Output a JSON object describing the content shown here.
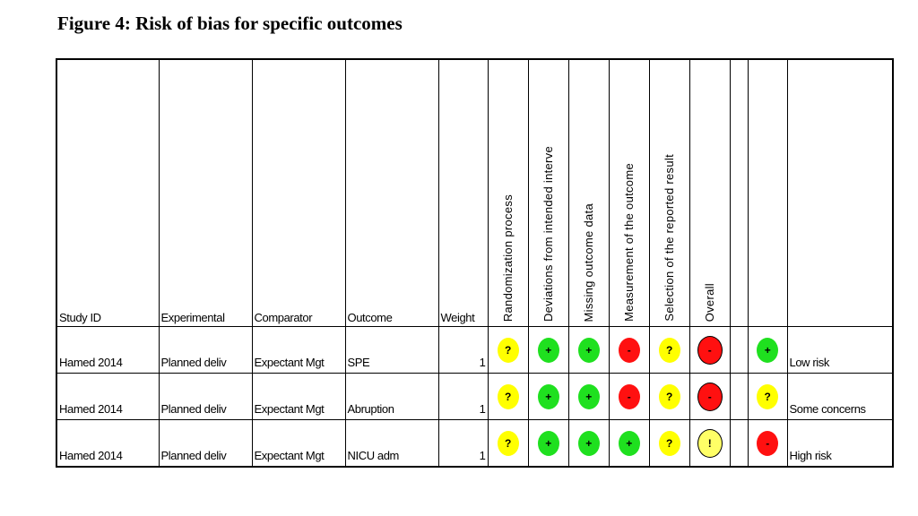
{
  "title": "Figure 4: Risk of bias for specific outcomes",
  "table": {
    "headers": [
      "Study ID",
      "Experimental",
      "Comparator",
      "Outcome",
      "Weight"
    ],
    "domains": [
      "Randomization process",
      "Deviations from intended interve",
      "Missing outcome data",
      "Measurement of the outcome",
      "Selection of the reported result",
      "Overall"
    ],
    "rows": [
      {
        "cells": [
          "Hamed 2014",
          "Planned deliv",
          "Expectant Mgt",
          "SPE",
          1
        ],
        "judgments": [
          "?",
          "+",
          "+",
          "-",
          "?",
          "-"
        ]
      },
      {
        "cells": [
          "Hamed 2014",
          "Planned deliv",
          "Expectant Mgt",
          "Abruption",
          1
        ],
        "judgments": [
          "?",
          "+",
          "+",
          "-",
          "?",
          "-"
        ]
      },
      {
        "cells": [
          "Hamed 2014",
          "Planned deliv",
          "Expectant Mgt",
          "NICU adm",
          1
        ],
        "judgments": [
          "?",
          "+",
          "+",
          "+",
          "?",
          "!"
        ]
      }
    ]
  },
  "legend": [
    {
      "symbol": "+",
      "label": "Low risk"
    },
    {
      "symbol": "?",
      "label": "Some concerns"
    },
    {
      "symbol": "-",
      "label": "High risk"
    }
  ],
  "symbol_colors": {
    "+": "#1fe01f",
    "?": "#ffff00",
    "-": "#ff1010",
    "!": "#ffff66"
  }
}
